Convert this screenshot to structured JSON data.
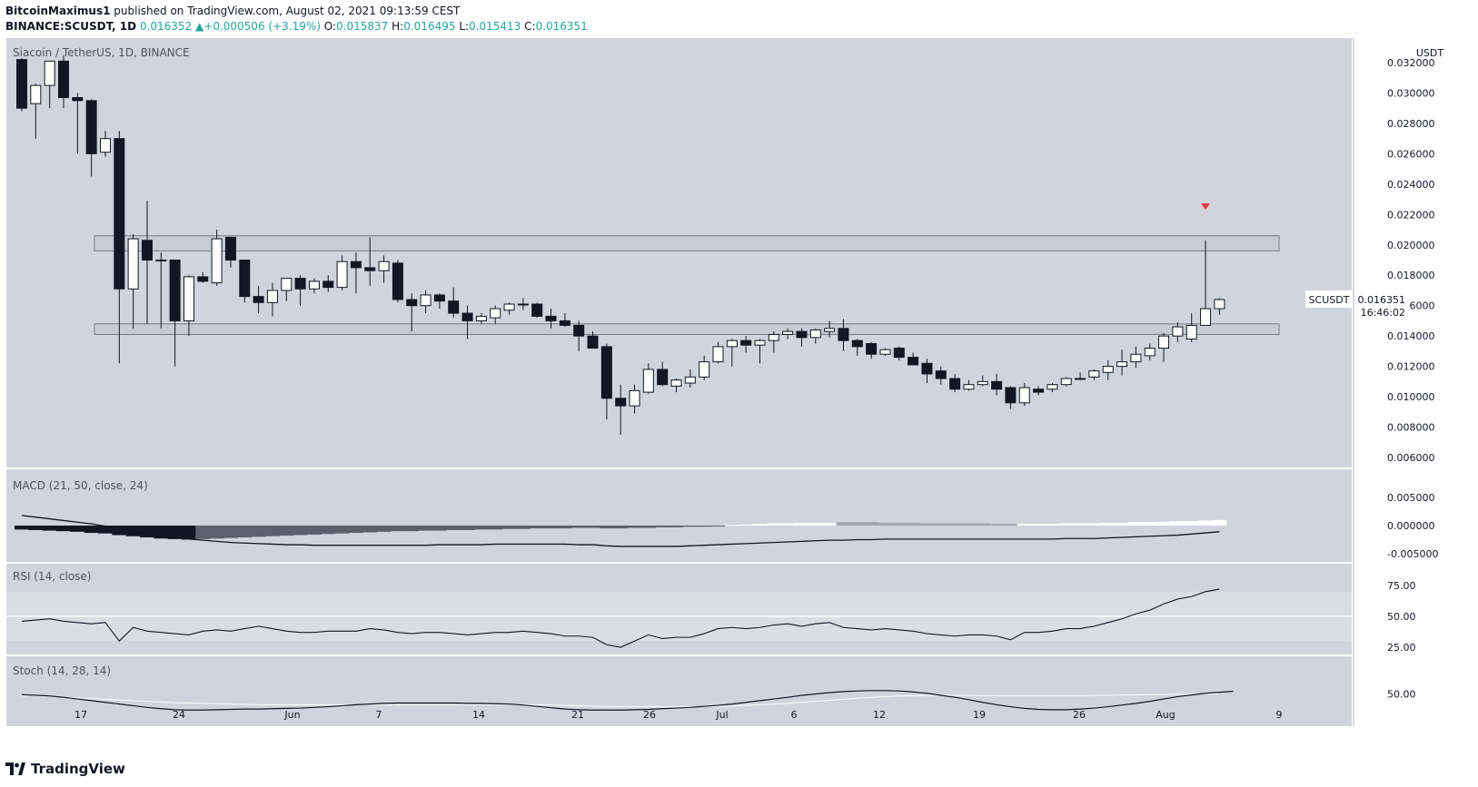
{
  "header": {
    "author": "BitcoinMaximus1",
    "published_text": "published on TradingView.com, August 02, 2021 09:13:59 CEST",
    "symbol_line": "BINANCE:SCUSDT, 1D",
    "last": "0.016352",
    "arrow": "▲",
    "change": "+0.000506 (+3.19%)",
    "o_label": "O:",
    "o": "0.015837",
    "h_label": "H:",
    "h": "0.016495",
    "l_label": "L:",
    "l": "0.015413",
    "c_label": "C:",
    "c": "0.016351"
  },
  "main_pane": {
    "title": "Siacoin / TetherUS, 1D, BINANCE",
    "axis_unit": "USDT",
    "last_label": "SCUSDT",
    "last_value": "0.016351",
    "countdown": "16:46:02"
  },
  "macd_pane": {
    "label": "MACD (21, 50, close, 24)"
  },
  "rsi_pane": {
    "label": "RSI (14, close)"
  },
  "stoch_pane": {
    "label": "Stoch (14, 28, 14)"
  },
  "footer": {
    "brand": "TradingView"
  },
  "colors": {
    "pane_bg": "#d1d4dc",
    "bull_body": "#ffffff",
    "bear_body": "#131722",
    "zone_fill": "#c3c6ce",
    "marker_red": "#f23645",
    "rsi_band": "#dbdde3"
  },
  "chart_data": [
    {
      "type": "candlestick",
      "title": "Siacoin / TetherUS, 1D, BINANCE",
      "x_tick_labels": [
        "17",
        "24",
        "Jun",
        "7",
        "14",
        "21",
        "26",
        "Jul",
        "6",
        "12",
        "19",
        "26",
        "Aug",
        "9"
      ],
      "y_ticks": [
        "0.032000",
        "0.030000",
        "0.028000",
        "0.026000",
        "0.024000",
        "0.022000",
        "0.020000",
        "0.018000",
        "0.016000",
        "0.014000",
        "0.012000",
        "0.010000",
        "0.008000",
        "0.006000"
      ],
      "ylim": [
        0.0055,
        0.0325
      ],
      "ohlc": [
        [
          0.0322,
          0.0323,
          0.0288,
          0.029
        ],
        [
          0.0293,
          0.0306,
          0.027,
          0.0305
        ],
        [
          0.0305,
          0.032,
          0.029,
          0.0321
        ],
        [
          0.0321,
          0.0325,
          0.029,
          0.0297
        ],
        [
          0.0297,
          0.03,
          0.026,
          0.0295
        ],
        [
          0.0295,
          0.0296,
          0.0245,
          0.026
        ],
        [
          0.0261,
          0.0275,
          0.0258,
          0.027
        ],
        [
          0.027,
          0.0275,
          0.0122,
          0.0171
        ],
        [
          0.0171,
          0.0207,
          0.0145,
          0.0204
        ],
        [
          0.0203,
          0.0229,
          0.0148,
          0.019
        ],
        [
          0.019,
          0.0195,
          0.0145,
          0.019
        ],
        [
          0.019,
          0.019,
          0.012,
          0.015
        ],
        [
          0.015,
          0.018,
          0.014,
          0.0179
        ],
        [
          0.0179,
          0.0182,
          0.0175,
          0.0176
        ],
        [
          0.0175,
          0.021,
          0.0173,
          0.0204
        ],
        [
          0.0205,
          0.0205,
          0.0185,
          0.019
        ],
        [
          0.019,
          0.019,
          0.0162,
          0.0166
        ],
        [
          0.0166,
          0.0173,
          0.0155,
          0.0162
        ],
        [
          0.0162,
          0.0175,
          0.0153,
          0.017
        ],
        [
          0.017,
          0.0178,
          0.0163,
          0.0178
        ],
        [
          0.0178,
          0.018,
          0.016,
          0.0171
        ],
        [
          0.0171,
          0.0178,
          0.0168,
          0.0176
        ],
        [
          0.0176,
          0.018,
          0.0169,
          0.0172
        ],
        [
          0.0172,
          0.0193,
          0.017,
          0.0189
        ],
        [
          0.0189,
          0.0195,
          0.0168,
          0.0185
        ],
        [
          0.0185,
          0.0205,
          0.0173,
          0.0183
        ],
        [
          0.0183,
          0.0193,
          0.0175,
          0.0189
        ],
        [
          0.0188,
          0.019,
          0.0162,
          0.0164
        ],
        [
          0.0164,
          0.0168,
          0.0143,
          0.016
        ],
        [
          0.016,
          0.017,
          0.0155,
          0.0167
        ],
        [
          0.0167,
          0.0168,
          0.0158,
          0.0163
        ],
        [
          0.0163,
          0.0172,
          0.0152,
          0.0155
        ],
        [
          0.0155,
          0.016,
          0.0138,
          0.015
        ],
        [
          0.015,
          0.0155,
          0.0148,
          0.0153
        ],
        [
          0.0152,
          0.016,
          0.0148,
          0.0158
        ],
        [
          0.0157,
          0.0162,
          0.0154,
          0.0161
        ],
        [
          0.0161,
          0.0165,
          0.0157,
          0.0161
        ],
        [
          0.0161,
          0.0162,
          0.0152,
          0.0153
        ],
        [
          0.0153,
          0.0158,
          0.0145,
          0.015
        ],
        [
          0.015,
          0.0155,
          0.0146,
          0.0147
        ],
        [
          0.0147,
          0.015,
          0.013,
          0.014
        ],
        [
          0.014,
          0.0143,
          0.0132,
          0.0132
        ],
        [
          0.0133,
          0.0135,
          0.0085,
          0.0099
        ],
        [
          0.0099,
          0.0108,
          0.0075,
          0.0094
        ],
        [
          0.0094,
          0.0108,
          0.0089,
          0.0104
        ],
        [
          0.0103,
          0.0122,
          0.0102,
          0.0118
        ],
        [
          0.0118,
          0.0123,
          0.0107,
          0.0108
        ],
        [
          0.0107,
          0.0112,
          0.0103,
          0.0111
        ],
        [
          0.0109,
          0.0118,
          0.0106,
          0.0113
        ],
        [
          0.0113,
          0.0127,
          0.0111,
          0.0123
        ],
        [
          0.0123,
          0.0136,
          0.0122,
          0.0133
        ],
        [
          0.0133,
          0.0138,
          0.012,
          0.0137
        ],
        [
          0.0137,
          0.014,
          0.0129,
          0.0134
        ],
        [
          0.0134,
          0.0138,
          0.0122,
          0.0137
        ],
        [
          0.0137,
          0.0143,
          0.0129,
          0.0141
        ],
        [
          0.0141,
          0.0145,
          0.0138,
          0.0143
        ],
        [
          0.0143,
          0.0145,
          0.0133,
          0.0139
        ],
        [
          0.0139,
          0.0145,
          0.0135,
          0.0144
        ],
        [
          0.0143,
          0.015,
          0.0139,
          0.0145
        ],
        [
          0.0145,
          0.0151,
          0.013,
          0.0137
        ],
        [
          0.0137,
          0.0138,
          0.0127,
          0.0133
        ],
        [
          0.0135,
          0.0136,
          0.0125,
          0.0128
        ],
        [
          0.0128,
          0.0132,
          0.0127,
          0.0131
        ],
        [
          0.0132,
          0.0133,
          0.0124,
          0.0126
        ],
        [
          0.0126,
          0.0129,
          0.0121,
          0.0121
        ],
        [
          0.0122,
          0.0125,
          0.0109,
          0.0115
        ],
        [
          0.0117,
          0.012,
          0.0108,
          0.0112
        ],
        [
          0.0112,
          0.0115,
          0.0103,
          0.0105
        ],
        [
          0.0105,
          0.0111,
          0.0104,
          0.0108
        ],
        [
          0.0108,
          0.0114,
          0.0107,
          0.011
        ],
        [
          0.011,
          0.0115,
          0.0101,
          0.0105
        ],
        [
          0.0106,
          0.0107,
          0.0092,
          0.0096
        ],
        [
          0.0096,
          0.0109,
          0.0094,
          0.0106
        ],
        [
          0.0105,
          0.0107,
          0.0101,
          0.0103
        ],
        [
          0.0105,
          0.0109,
          0.0103,
          0.0108
        ],
        [
          0.0108,
          0.0113,
          0.0107,
          0.0112
        ],
        [
          0.0112,
          0.0116,
          0.0111,
          0.0112
        ],
        [
          0.0113,
          0.0118,
          0.0111,
          0.0117
        ],
        [
          0.0116,
          0.0124,
          0.0111,
          0.012
        ],
        [
          0.012,
          0.0131,
          0.0114,
          0.0123
        ],
        [
          0.0123,
          0.0133,
          0.0119,
          0.0128
        ],
        [
          0.0127,
          0.0135,
          0.0124,
          0.0132
        ],
        [
          0.0132,
          0.0142,
          0.0123,
          0.014
        ],
        [
          0.014,
          0.0149,
          0.0136,
          0.0146
        ],
        [
          0.0138,
          0.0155,
          0.0136,
          0.0147
        ],
        [
          0.0147,
          0.0203,
          0.0148,
          0.0158
        ],
        [
          0.0158,
          0.0165,
          0.0154,
          0.0164
        ]
      ],
      "zones": [
        [
          0.0196,
          0.0206
        ],
        [
          0.0141,
          0.0148
        ]
      ],
      "marker": {
        "type": "down-arrow",
        "value": 0.0225,
        "bar_index": 85
      }
    },
    {
      "type": "bar",
      "title": "MACD (21, 50, close, 24)",
      "y_ticks": [
        "0.005000",
        "0.000000",
        "-0.005000"
      ],
      "ylim": [
        -0.0065,
        0.0065
      ],
      "histogram": [
        -0.0007,
        -0.0008,
        -0.0009,
        -0.001,
        -0.0011,
        -0.0013,
        -0.0014,
        -0.0017,
        -0.0019,
        -0.0021,
        -0.0023,
        -0.0024,
        -0.0025,
        -0.0024,
        -0.0023,
        -0.0022,
        -0.0021,
        -0.002,
        -0.0019,
        -0.0018,
        -0.0017,
        -0.0016,
        -0.0015,
        -0.0014,
        -0.0013,
        -0.0012,
        -0.0011,
        -0.001,
        -0.001,
        -0.0009,
        -0.0009,
        -0.0008,
        -0.0008,
        -0.0007,
        -0.0007,
        -0.0006,
        -0.0006,
        -0.0005,
        -0.0005,
        -0.0005,
        -0.0004,
        -0.0004,
        -0.0005,
        -0.0005,
        -0.0004,
        -0.0004,
        -0.0003,
        -0.0003,
        -0.0002,
        -0.0002,
        -0.0001,
        0.0001,
        0.0002,
        0.0003,
        0.0004,
        0.0004,
        0.0005,
        0.0005,
        0.0005,
        0.0006,
        0.0006,
        0.0006,
        0.0005,
        0.0005,
        0.0005,
        0.0004,
        0.0004,
        0.0004,
        0.0004,
        0.0004,
        0.0003,
        0.0003,
        0.0003,
        0.0003,
        0.0003,
        0.0004,
        0.0004,
        0.0004,
        0.0005,
        0.0005,
        0.0006,
        0.0006,
        0.0007,
        0.0008,
        0.0008,
        0.0009,
        0.001
      ],
      "line": [
        0.0018,
        0.0015,
        0.0012,
        0.0009,
        0.0006,
        0.0003,
        -0.0001,
        -0.0006,
        -0.001,
        -0.0014,
        -0.0018,
        -0.0021,
        -0.0024,
        -0.0026,
        -0.0028,
        -0.003,
        -0.0031,
        -0.0032,
        -0.0033,
        -0.0034,
        -0.0034,
        -0.0035,
        -0.0035,
        -0.0035,
        -0.0035,
        -0.0035,
        -0.0035,
        -0.0035,
        -0.0035,
        -0.0035,
        -0.0034,
        -0.0034,
        -0.0034,
        -0.0034,
        -0.0033,
        -0.0033,
        -0.0033,
        -0.0033,
        -0.0033,
        -0.0033,
        -0.0034,
        -0.0034,
        -0.0036,
        -0.0037,
        -0.0037,
        -0.0037,
        -0.0037,
        -0.0037,
        -0.0036,
        -0.0035,
        -0.0034,
        -0.0033,
        -0.0032,
        -0.0031,
        -0.003,
        -0.0029,
        -0.0028,
        -0.0027,
        -0.0026,
        -0.0026,
        -0.0025,
        -0.0025,
        -0.0024,
        -0.0024,
        -0.0024,
        -0.0024,
        -0.0024,
        -0.0024,
        -0.0024,
        -0.0024,
        -0.0024,
        -0.0024,
        -0.0024,
        -0.0024,
        -0.0024,
        -0.0023,
        -0.0023,
        -0.0023,
        -0.0022,
        -0.0021,
        -0.002,
        -0.0019,
        -0.0018,
        -0.0017,
        -0.0015,
        -0.0013,
        -0.0011
      ]
    },
    {
      "type": "line",
      "title": "RSI (14, close)",
      "y_ticks": [
        "75.00",
        "50.00",
        "25.00"
      ],
      "ylim": [
        18,
        82
      ],
      "band": [
        30,
        70
      ],
      "midline": 50,
      "values": [
        46,
        47,
        48,
        46,
        45,
        44,
        45,
        30,
        41,
        38,
        37,
        36,
        35,
        38,
        39,
        38,
        40,
        42,
        40,
        38,
        37,
        37,
        38,
        38,
        38,
        40,
        39,
        37,
        36,
        37,
        37,
        36,
        35,
        36,
        37,
        37,
        38,
        37,
        36,
        34,
        34,
        33,
        27,
        25,
        30,
        35,
        32,
        33,
        33,
        36,
        40,
        41,
        40,
        41,
        43,
        44,
        42,
        44,
        45,
        41,
        40,
        39,
        40,
        39,
        38,
        36,
        35,
        34,
        35,
        35,
        34,
        31,
        37,
        37,
        38,
        40,
        40,
        42,
        45,
        48,
        52,
        55,
        60,
        64,
        66,
        70,
        72
      ]
    },
    {
      "type": "line",
      "title": "Stoch (14, 28, 14)",
      "y_ticks": [
        "50.00"
      ],
      "ylim": [
        -5,
        85
      ],
      "k": [
        48,
        46,
        44,
        40,
        35,
        30,
        25,
        20,
        15,
        10,
        6,
        3,
        2,
        2,
        3,
        4,
        5,
        5,
        6,
        7,
        8,
        10,
        12,
        15,
        18,
        20,
        22,
        23,
        23,
        23,
        23,
        23,
        22,
        22,
        21,
        20,
        17,
        13,
        9,
        5,
        3,
        2,
        2,
        2,
        3,
        4,
        6,
        8,
        10,
        13,
        16,
        20,
        25,
        30,
        35,
        40,
        46,
        50,
        54,
        57,
        59,
        60,
        60,
        59,
        56,
        52,
        46,
        40,
        33,
        25,
        18,
        12,
        7,
        4,
        3,
        3,
        5,
        8,
        12,
        17,
        22,
        28,
        35,
        42,
        47,
        52,
        55,
        58
      ],
      "d": [
        45,
        44,
        42,
        40,
        38,
        36,
        34,
        32,
        30,
        28,
        26,
        24,
        23,
        22,
        21,
        20,
        19,
        18,
        18,
        18,
        18,
        18,
        18,
        18,
        18,
        18,
        18,
        18,
        18,
        18,
        18,
        18,
        18,
        18,
        18,
        18,
        18,
        18,
        17,
        16,
        15,
        14,
        13,
        12,
        12,
        12,
        12,
        12,
        12,
        12,
        13,
        14,
        16,
        18,
        20,
        22,
        25,
        28,
        31,
        34,
        37,
        40,
        42,
        44,
        45,
        46,
        46,
        46,
        46,
        45,
        45,
        45,
        45,
        45,
        45,
        45,
        45,
        46,
        46,
        47,
        47,
        48,
        48,
        49,
        49,
        50,
        50
      ]
    }
  ]
}
